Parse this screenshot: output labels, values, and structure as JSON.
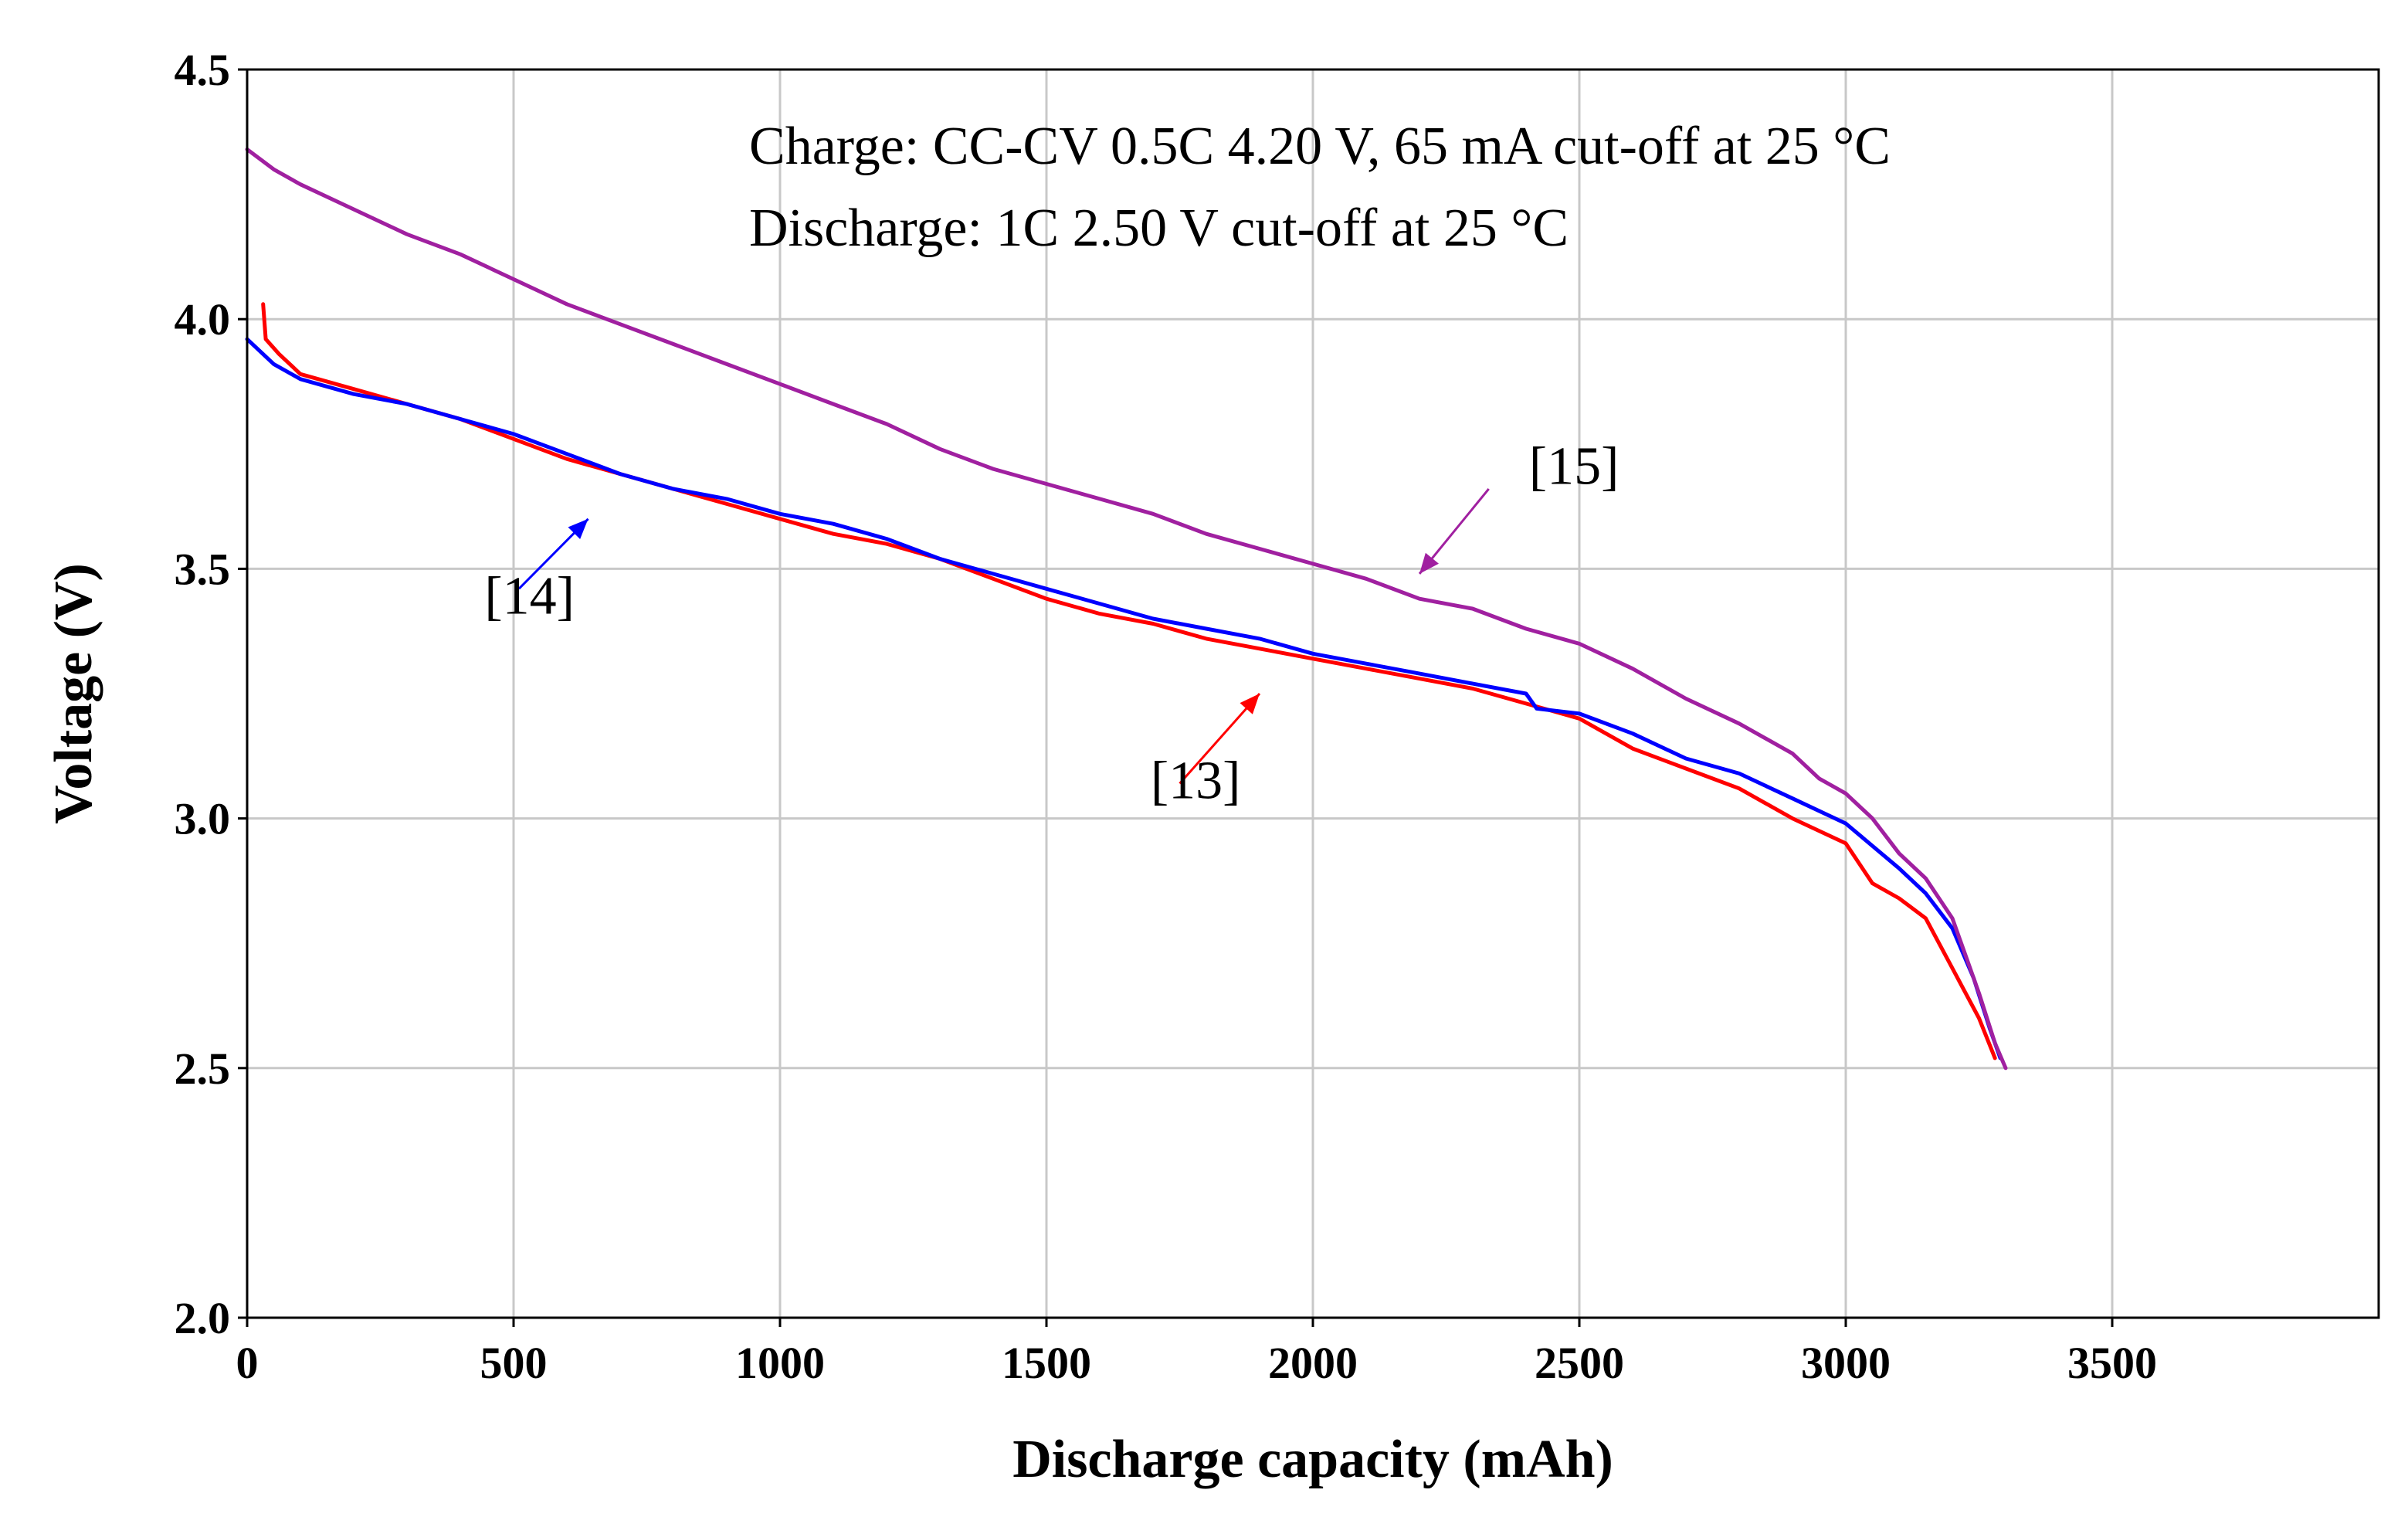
{
  "chart_data": {
    "type": "line",
    "title": "",
    "xlabel": "Discharge capacity (mAh)",
    "ylabel": "Voltage (V)",
    "xlim": [
      0,
      4000
    ],
    "ylim": [
      2.0,
      4.5
    ],
    "x_ticks": [
      0,
      500,
      1000,
      1500,
      2000,
      2500,
      3000,
      3500
    ],
    "x_tick_labels": [
      "0",
      "500",
      "1000",
      "1500",
      "2000",
      "2500",
      "3000",
      "3500"
    ],
    "y_ticks": [
      2.0,
      2.5,
      3.0,
      3.5,
      4.0,
      4.5
    ],
    "y_tick_labels": [
      "2.0",
      "2.5",
      "3.0",
      "3.5",
      "4.0",
      "4.5"
    ],
    "grid": true,
    "annotation_lines": [
      "Charge: CC-CV 0.5C  4.20 V, 65 mA cut-off at 25 °C",
      "Discharge: 1C 2.50 V cut-off at 25 °C"
    ],
    "series": [
      {
        "name": "[13]",
        "color": "#ff0000",
        "points": [
          [
            30,
            4.03
          ],
          [
            35,
            3.96
          ],
          [
            60,
            3.93
          ],
          [
            100,
            3.89
          ],
          [
            200,
            3.86
          ],
          [
            300,
            3.83
          ],
          [
            400,
            3.8
          ],
          [
            500,
            3.76
          ],
          [
            600,
            3.72
          ],
          [
            700,
            3.69
          ],
          [
            800,
            3.66
          ],
          [
            900,
            3.63
          ],
          [
            1000,
            3.6
          ],
          [
            1100,
            3.57
          ],
          [
            1200,
            3.55
          ],
          [
            1300,
            3.52
          ],
          [
            1400,
            3.48
          ],
          [
            1500,
            3.44
          ],
          [
            1600,
            3.41
          ],
          [
            1700,
            3.39
          ],
          [
            1800,
            3.36
          ],
          [
            1900,
            3.34
          ],
          [
            2000,
            3.32
          ],
          [
            2100,
            3.3
          ],
          [
            2200,
            3.28
          ],
          [
            2300,
            3.26
          ],
          [
            2400,
            3.23
          ],
          [
            2500,
            3.2
          ],
          [
            2600,
            3.14
          ],
          [
            2700,
            3.1
          ],
          [
            2800,
            3.06
          ],
          [
            2900,
            3.0
          ],
          [
            3000,
            2.95
          ],
          [
            3050,
            2.87
          ],
          [
            3100,
            2.84
          ],
          [
            3150,
            2.8
          ],
          [
            3200,
            2.7
          ],
          [
            3250,
            2.6
          ],
          [
            3280,
            2.52
          ]
        ]
      },
      {
        "name": "[14]",
        "color": "#0000ff",
        "points": [
          [
            0,
            3.96
          ],
          [
            50,
            3.91
          ],
          [
            100,
            3.88
          ],
          [
            200,
            3.85
          ],
          [
            300,
            3.83
          ],
          [
            400,
            3.8
          ],
          [
            500,
            3.77
          ],
          [
            600,
            3.73
          ],
          [
            700,
            3.69
          ],
          [
            800,
            3.66
          ],
          [
            900,
            3.64
          ],
          [
            1000,
            3.61
          ],
          [
            1100,
            3.59
          ],
          [
            1200,
            3.56
          ],
          [
            1300,
            3.52
          ],
          [
            1400,
            3.49
          ],
          [
            1500,
            3.46
          ],
          [
            1600,
            3.43
          ],
          [
            1700,
            3.4
          ],
          [
            1800,
            3.38
          ],
          [
            1900,
            3.36
          ],
          [
            2000,
            3.33
          ],
          [
            2100,
            3.31
          ],
          [
            2200,
            3.29
          ],
          [
            2300,
            3.27
          ],
          [
            2400,
            3.25
          ],
          [
            2420,
            3.22
          ],
          [
            2500,
            3.21
          ],
          [
            2600,
            3.17
          ],
          [
            2700,
            3.12
          ],
          [
            2800,
            3.09
          ],
          [
            2900,
            3.04
          ],
          [
            3000,
            2.99
          ],
          [
            3100,
            2.9
          ],
          [
            3150,
            2.85
          ],
          [
            3200,
            2.78
          ],
          [
            3240,
            2.68
          ],
          [
            3270,
            2.58
          ],
          [
            3290,
            2.52
          ]
        ]
      },
      {
        "name": "[15]",
        "color": "#a020a0",
        "points": [
          [
            0,
            4.34
          ],
          [
            50,
            4.3
          ],
          [
            100,
            4.27
          ],
          [
            200,
            4.22
          ],
          [
            300,
            4.17
          ],
          [
            400,
            4.13
          ],
          [
            500,
            4.08
          ],
          [
            600,
            4.03
          ],
          [
            700,
            3.99
          ],
          [
            800,
            3.95
          ],
          [
            900,
            3.91
          ],
          [
            1000,
            3.87
          ],
          [
            1100,
            3.83
          ],
          [
            1200,
            3.79
          ],
          [
            1300,
            3.74
          ],
          [
            1400,
            3.7
          ],
          [
            1500,
            3.67
          ],
          [
            1600,
            3.64
          ],
          [
            1700,
            3.61
          ],
          [
            1800,
            3.57
          ],
          [
            1900,
            3.54
          ],
          [
            2000,
            3.51
          ],
          [
            2100,
            3.48
          ],
          [
            2200,
            3.44
          ],
          [
            2300,
            3.42
          ],
          [
            2400,
            3.38
          ],
          [
            2500,
            3.35
          ],
          [
            2600,
            3.3
          ],
          [
            2700,
            3.24
          ],
          [
            2800,
            3.19
          ],
          [
            2900,
            3.13
          ],
          [
            2950,
            3.08
          ],
          [
            3000,
            3.05
          ],
          [
            3050,
            3.0
          ],
          [
            3100,
            2.93
          ],
          [
            3150,
            2.88
          ],
          [
            3200,
            2.8
          ],
          [
            3250,
            2.65
          ],
          [
            3280,
            2.55
          ],
          [
            3300,
            2.5
          ]
        ]
      }
    ],
    "reference_labels": [
      {
        "text": "[13]",
        "series": "[13]",
        "label_x": 1780,
        "label_y": 3.04,
        "arrow_from": [
          1750,
          3.07
        ],
        "arrow_to": [
          1900,
          3.25
        ]
      },
      {
        "text": "[14]",
        "series": "[14]",
        "label_x": 530,
        "label_y": 3.41,
        "arrow_from": [
          510,
          3.46
        ],
        "arrow_to": [
          640,
          3.6
        ]
      },
      {
        "text": "[15]",
        "series": "[15]",
        "label_x": 2490,
        "label_y": 3.67,
        "arrow_from": [
          2330,
          3.66
        ],
        "arrow_to": [
          2200,
          3.49
        ]
      }
    ]
  }
}
